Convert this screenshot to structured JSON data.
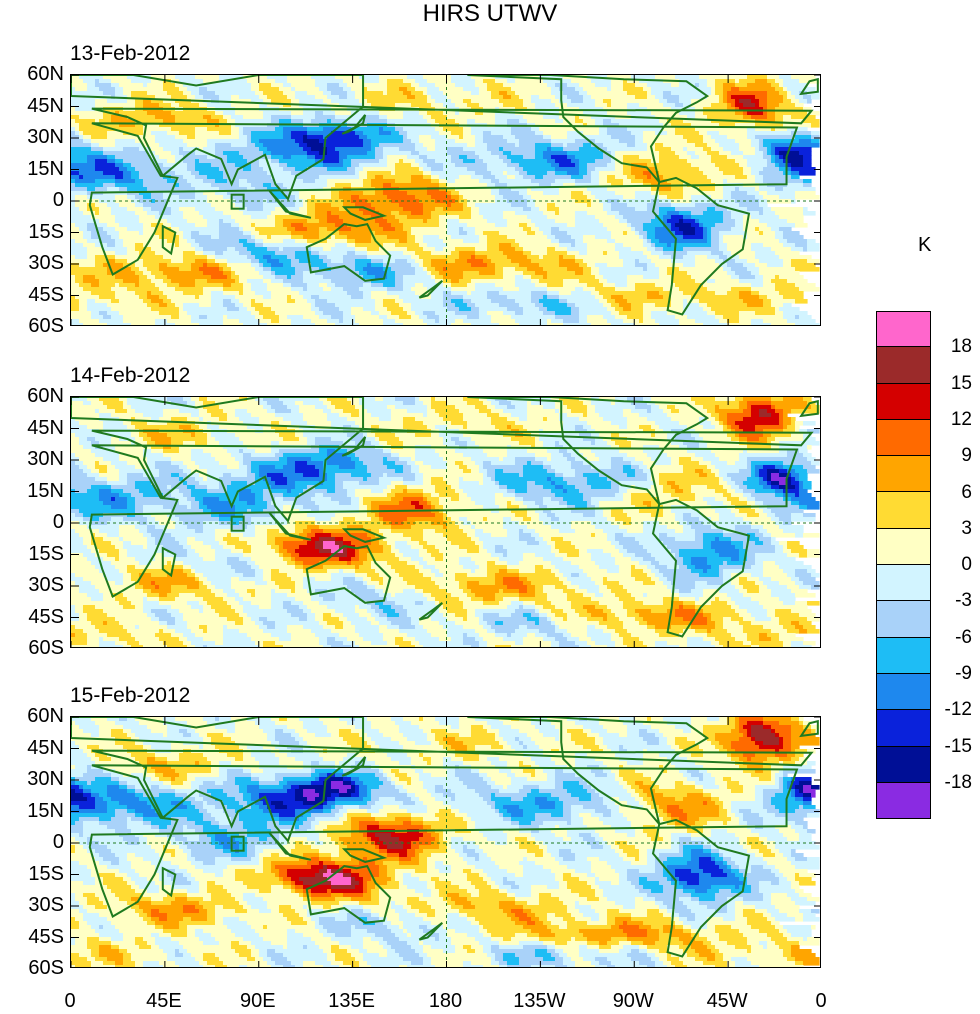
{
  "title": "HIRS UTWV",
  "unit": "K",
  "panels": [
    {
      "date": "13-Feb-2012"
    },
    {
      "date": "14-Feb-2012"
    },
    {
      "date": "15-Feb-2012"
    }
  ],
  "y_ticks": [
    "60N",
    "45N",
    "30N",
    "15N",
    "0",
    "15S",
    "30S",
    "45S",
    "60S"
  ],
  "x_ticks": [
    "0",
    "45E",
    "90E",
    "135E",
    "180",
    "135W",
    "90W",
    "45W",
    "0"
  ],
  "colorbar": {
    "colors": [
      "#ff66cc",
      "#9b2a2a",
      "#d40000",
      "#ff6a00",
      "#ffa500",
      "#ffdb33",
      "#ffffc4",
      "#d2f4ff",
      "#a9d2f9",
      "#1ebdf5",
      "#1e88ee",
      "#0a22db",
      "#000f96",
      "#8a2be2"
    ],
    "labels": [
      "18",
      "15",
      "12",
      "9",
      "6",
      "3",
      "0",
      "-3",
      "-6",
      "-9",
      "-12",
      "-15",
      "-18"
    ]
  }
}
